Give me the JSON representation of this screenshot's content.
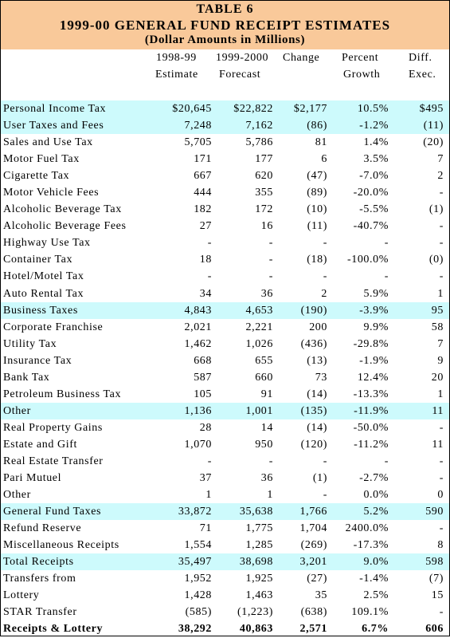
{
  "title": {
    "line1": "TABLE 6",
    "line2": "1999-00 GENERAL FUND RECEIPT ESTIMATES",
    "line3": "(Dollar Amounts in Millions)"
  },
  "headers": {
    "col1": [
      "1998-99",
      "Estimate"
    ],
    "col2": [
      "1999-2000",
      "Forecast"
    ],
    "col3": [
      "Change",
      ""
    ],
    "col4": [
      "Percent",
      "Growth"
    ],
    "col5": [
      "Diff.",
      "Exec."
    ]
  },
  "rows": [
    {
      "label": "Personal Income Tax",
      "v": [
        "$20,645",
        "$22,822",
        "$2,177",
        "10.5%",
        "$495"
      ],
      "highlight": true
    },
    {
      "label": "User Taxes and Fees",
      "v": [
        "7,248",
        "7,162",
        "(86)",
        "-1.2%",
        "(11)"
      ],
      "highlight": true
    },
    {
      "label": "Sales and Use Tax",
      "v": [
        "5,705",
        "5,786",
        "81",
        "1.4%",
        "(20)"
      ]
    },
    {
      "label": "Motor Fuel Tax",
      "v": [
        "171",
        "177",
        "6",
        "3.5%",
        "7"
      ]
    },
    {
      "label": "Cigarette Tax",
      "v": [
        "667",
        "620",
        "(47)",
        "-7.0%",
        "2"
      ]
    },
    {
      "label": "Motor Vehicle Fees",
      "v": [
        "444",
        "355",
        "(89)",
        "-20.0%",
        "-"
      ]
    },
    {
      "label": "Alcoholic Beverage Tax",
      "v": [
        "182",
        "172",
        "(10)",
        "-5.5%",
        "(1)"
      ]
    },
    {
      "label": "Alcoholic Beverage Fees",
      "v": [
        "27",
        "16",
        "(11)",
        "-40.7%",
        "-"
      ]
    },
    {
      "label": "Highway Use Tax",
      "v": [
        "-",
        "-",
        "-",
        "-",
        "-"
      ]
    },
    {
      "label": "Container Tax",
      "v": [
        "18",
        "-",
        "(18)",
        "-100.0%",
        "(0)"
      ]
    },
    {
      "label": "Hotel/Motel Tax",
      "v": [
        "-",
        "-",
        "-",
        "-",
        "-"
      ]
    },
    {
      "label": "Auto Rental Tax",
      "v": [
        "34",
        "36",
        "2",
        "5.9%",
        "1"
      ]
    },
    {
      "label": "Business Taxes",
      "v": [
        "4,843",
        "4,653",
        "(190)",
        "-3.9%",
        "95"
      ],
      "highlight": true
    },
    {
      "label": "Corporate Franchise",
      "v": [
        "2,021",
        "2,221",
        "200",
        "9.9%",
        "58"
      ]
    },
    {
      "label": "Utility Tax",
      "v": [
        "1,462",
        "1,026",
        "(436)",
        "-29.8%",
        "7"
      ]
    },
    {
      "label": "Insurance Tax",
      "v": [
        "668",
        "655",
        "(13)",
        "-1.9%",
        "9"
      ]
    },
    {
      "label": "Bank Tax",
      "v": [
        "587",
        "660",
        "73",
        "12.4%",
        "20"
      ]
    },
    {
      "label": "Petroleum Business Tax",
      "v": [
        "105",
        "91",
        "(14)",
        "-13.3%",
        "1"
      ]
    },
    {
      "label": "Other",
      "v": [
        "1,136",
        "1,001",
        "(135)",
        "-11.9%",
        "11"
      ],
      "highlight": true
    },
    {
      "label": "Real Property Gains",
      "v": [
        "28",
        "14",
        "(14)",
        "-50.0%",
        "-"
      ]
    },
    {
      "label": "Estate and Gift",
      "v": [
        "1,070",
        "950",
        "(120)",
        "-11.2%",
        "11"
      ]
    },
    {
      "label": "Real Estate Transfer",
      "v": [
        "-",
        "-",
        "-",
        "-",
        "-"
      ]
    },
    {
      "label": "Pari Mutuel",
      "v": [
        "37",
        "36",
        "(1)",
        "-2.7%",
        "-"
      ]
    },
    {
      "label": "Other",
      "v": [
        "1",
        "1",
        "-",
        "0.0%",
        "0"
      ]
    },
    {
      "label": "General Fund Taxes",
      "v": [
        "33,872",
        "35,638",
        "1,766",
        "5.2%",
        "590"
      ],
      "highlight": true
    },
    {
      "label": "Refund Reserve",
      "v": [
        "71",
        "1,775",
        "1,704",
        "2400.0%",
        "-"
      ]
    },
    {
      "label": "Miscellaneous Receipts",
      "v": [
        "1,554",
        "1,285",
        "(269)",
        "-17.3%",
        "8"
      ]
    },
    {
      "label": "Total Receipts",
      "v": [
        "35,497",
        "38,698",
        "3,201",
        "9.0%",
        "598"
      ],
      "highlight": true
    },
    {
      "label": "Transfers from",
      "v": [
        "1,952",
        "1,925",
        "(27)",
        "-1.4%",
        "(7)"
      ]
    },
    {
      "label": "Lottery",
      "v": [
        "1,428",
        "1,463",
        "35",
        "2.5%",
        "15"
      ]
    },
    {
      "label": "STAR Transfer",
      "v": [
        "(585)",
        "(1,223)",
        "(638)",
        "109.1%",
        "-"
      ]
    },
    {
      "label": "Receipts & Lottery",
      "v": [
        "38,292",
        "40,863",
        "2,571",
        "6.7%",
        "606"
      ],
      "bold": true
    }
  ],
  "colors": {
    "title_band": "#f9c99a",
    "row_highlight": "#cdfafc"
  }
}
